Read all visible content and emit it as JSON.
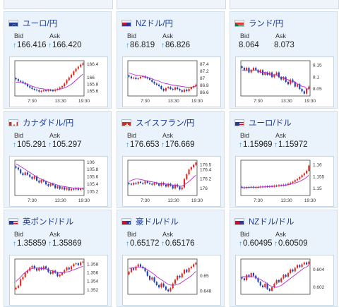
{
  "tiles": [
    {
      "pair": "ユーロ/円",
      "flag": "eu",
      "bid_label": "Bid",
      "ask_label": "Ask",
      "bid": "166.416",
      "ask": "166.420",
      "arrows": true,
      "y_ticks": [
        "166.4",
        "166",
        "165.8",
        "165.6"
      ],
      "x_ticks": [
        "7:30",
        "13:30",
        "19:30"
      ],
      "chart_data": {
        "type": "line",
        "ylim": [
          165.45,
          166.5
        ],
        "close": [
          165.95,
          165.9,
          165.88,
          165.84,
          165.8,
          165.74,
          165.7,
          165.66,
          165.64,
          165.62,
          165.58,
          165.6,
          165.62,
          165.6,
          165.63,
          165.62,
          165.6,
          165.64,
          165.66,
          165.7,
          165.74,
          165.82,
          165.92,
          166.0,
          166.08,
          166.18,
          166.26,
          166.32,
          166.38,
          166.42
        ],
        "ma": [
          165.86,
          165.86,
          165.85,
          165.84,
          165.82,
          165.8,
          165.77,
          165.74,
          165.72,
          165.7,
          165.68,
          165.67,
          165.66,
          165.64,
          165.64,
          165.63,
          165.63,
          165.63,
          165.64,
          165.65,
          165.67,
          165.69,
          165.72,
          165.76,
          165.8,
          165.86,
          165.92,
          165.98,
          166.04,
          166.1
        ]
      }
    },
    {
      "pair": "NZドル/円",
      "flag": "nz",
      "bid_label": "Bid",
      "ask_label": "Ask",
      "bid": "86.819",
      "ask": "86.826",
      "arrows": true,
      "y_ticks": [
        "87.4",
        "87.2",
        "87",
        "86.8",
        "86.6"
      ],
      "x_ticks": [
        "7:30",
        "13:30",
        "19:30"
      ],
      "chart_data": {
        "type": "line",
        "ylim": [
          86.5,
          87.5
        ],
        "close": [
          87.05,
          87.0,
          87.02,
          86.98,
          87.0,
          87.04,
          87.06,
          87.02,
          87.0,
          86.96,
          86.9,
          86.85,
          86.82,
          86.78,
          86.7,
          86.65,
          86.72,
          86.75,
          86.7,
          86.68,
          86.74,
          86.7,
          86.66,
          86.62,
          86.68,
          86.64,
          86.7,
          86.74,
          86.78,
          86.82
        ],
        "ma": [
          87.15,
          87.13,
          87.11,
          87.09,
          87.08,
          87.07,
          87.06,
          87.05,
          87.03,
          87.01,
          86.99,
          86.96,
          86.94,
          86.92,
          86.89,
          86.87,
          86.85,
          86.84,
          86.82,
          86.81,
          86.8,
          86.79,
          86.78,
          86.77,
          86.76,
          86.75,
          86.75,
          86.75,
          86.76,
          86.77
        ]
      }
    },
    {
      "pair": "ランド/円",
      "flag": "za",
      "bid_label": "Bid",
      "ask_label": "Ask",
      "bid": "8.064",
      "ask": "8.073",
      "arrows": false,
      "y_ticks": [
        "8.15",
        "8.1",
        "8.05"
      ],
      "x_ticks": [
        "7:30",
        "13:30",
        "19:30"
      ],
      "chart_data": {
        "type": "line",
        "ylim": [
          8.02,
          8.17
        ],
        "close": [
          8.14,
          8.13,
          8.14,
          8.12,
          8.13,
          8.14,
          8.13,
          8.12,
          8.13,
          8.11,
          8.12,
          8.11,
          8.12,
          8.1,
          8.11,
          8.12,
          8.1,
          8.09,
          8.1,
          8.08,
          8.07,
          8.09,
          8.08,
          8.06,
          8.07,
          8.05,
          8.04,
          8.03,
          8.05,
          8.06
        ],
        "ma": [
          8.13,
          8.13,
          8.13,
          8.13,
          8.13,
          8.13,
          8.13,
          8.13,
          8.12,
          8.12,
          8.12,
          8.12,
          8.11,
          8.11,
          8.11,
          8.11,
          8.1,
          8.1,
          8.1,
          8.09,
          8.09,
          8.08,
          8.08,
          8.08,
          8.07,
          8.07,
          8.06,
          8.06,
          8.05,
          8.05
        ]
      }
    },
    {
      "pair": "カナダドル/円",
      "flag": "ca",
      "bid_label": "Bid",
      "ask_label": "Ask",
      "bid": "105.291",
      "ask": "105.297",
      "arrows": true,
      "y_ticks": [
        "106",
        "105.8",
        "105.6",
        "105.4",
        "105.2"
      ],
      "x_ticks": [
        "7:30",
        "13:30",
        "19:30"
      ],
      "chart_data": {
        "type": "line",
        "ylim": [
          105.1,
          106.05
        ],
        "close": [
          105.85,
          105.8,
          105.7,
          105.65,
          105.72,
          105.66,
          105.6,
          105.55,
          105.62,
          105.5,
          105.45,
          105.52,
          105.48,
          105.4,
          105.36,
          105.42,
          105.38,
          105.3,
          105.35,
          105.28,
          105.32,
          105.26,
          105.3,
          105.24,
          105.28,
          105.26,
          105.3,
          105.25,
          105.28,
          105.29
        ],
        "ma": [
          105.95,
          105.92,
          105.88,
          105.84,
          105.8,
          105.76,
          105.72,
          105.68,
          105.64,
          105.6,
          105.57,
          105.54,
          105.51,
          105.48,
          105.46,
          105.44,
          105.42,
          105.4,
          105.38,
          105.36,
          105.35,
          105.34,
          105.33,
          105.32,
          105.31,
          105.3,
          105.3,
          105.29,
          105.29,
          105.29
        ]
      }
    },
    {
      "pair": "スイスフラン/円",
      "flag": "ch",
      "bid_label": "Bid",
      "ask_label": "Ask",
      "bid": "176.653",
      "ask": "176.669",
      "arrows": true,
      "y_ticks": [
        "176.5",
        "176.4",
        "176.2",
        "176"
      ],
      "x_ticks": [
        "7:30",
        "13:30",
        "19:30"
      ],
      "chart_data": {
        "type": "line",
        "ylim": [
          175.85,
          176.6
        ],
        "close": [
          176.1,
          176.08,
          176.12,
          176.1,
          176.14,
          176.12,
          176.1,
          176.15,
          176.12,
          176.1,
          176.08,
          176.12,
          176.1,
          176.06,
          176.12,
          176.08,
          176.04,
          176.1,
          176.06,
          176.0,
          176.08,
          176.04,
          175.98,
          176.02,
          176.2,
          176.3,
          176.4,
          176.45,
          176.5,
          176.55
        ],
        "ma": [
          176.15,
          176.17,
          176.19,
          176.2,
          176.2,
          176.19,
          176.18,
          176.17,
          176.16,
          176.15,
          176.14,
          176.13,
          176.12,
          176.11,
          176.1,
          176.1,
          176.09,
          176.09,
          176.08,
          176.07,
          176.07,
          176.06,
          176.05,
          176.05,
          176.08,
          176.11,
          176.15,
          176.19,
          176.24,
          176.28
        ]
      }
    },
    {
      "pair": "ユーロ/ドル",
      "flag": "us",
      "bid_label": "Bid",
      "ask_label": "Ask",
      "bid": "1.15969",
      "ask": "1.15972",
      "arrows": true,
      "y_ticks": [
        "1.16",
        "1.155",
        "1.15"
      ],
      "x_ticks": [
        "7:30",
        "13:30",
        "19:30"
      ],
      "chart_data": {
        "type": "line",
        "ylim": [
          1.147,
          1.162
        ],
        "close": [
          1.1505,
          1.1502,
          1.1506,
          1.1504,
          1.1507,
          1.1503,
          1.1506,
          1.1505,
          1.1508,
          1.1506,
          1.1509,
          1.1507,
          1.151,
          1.1508,
          1.1512,
          1.151,
          1.1514,
          1.1512,
          1.1516,
          1.1515,
          1.152,
          1.1524,
          1.1528,
          1.1535,
          1.154,
          1.1548,
          1.1556,
          1.1564,
          1.1575,
          1.1597
        ],
        "ma": [
          1.1503,
          1.1503,
          1.1504,
          1.1504,
          1.1505,
          1.1505,
          1.1505,
          1.1505,
          1.1506,
          1.1506,
          1.1507,
          1.1507,
          1.1508,
          1.1508,
          1.1509,
          1.151,
          1.1511,
          1.1512,
          1.1513,
          1.1514,
          1.1516,
          1.1518,
          1.152,
          1.1523,
          1.1526,
          1.153,
          1.1535,
          1.154,
          1.1547,
          1.1556
        ]
      }
    },
    {
      "pair": "英ポンド/ドル",
      "flag": "us",
      "bid_label": "Bid",
      "ask_label": "Ask",
      "bid": "1.35859",
      "ask": "1.35869",
      "arrows": true,
      "y_ticks": [
        "1.358",
        "1.356",
        "1.354",
        "1.352"
      ],
      "x_ticks": [],
      "chart_data": {
        "type": "line",
        "ylim": [
          1.351,
          1.3592
        ],
        "close": [
          1.3525,
          1.353,
          1.3545,
          1.355,
          1.356,
          1.3565,
          1.3572,
          1.3576,
          1.357,
          1.3565,
          1.3572,
          1.3568,
          1.3575,
          1.357,
          1.3562,
          1.3558,
          1.3565,
          1.356,
          1.3552,
          1.3555,
          1.356,
          1.3566,
          1.3572,
          1.3568,
          1.3575,
          1.358,
          1.3582,
          1.3578,
          1.3584,
          1.3586
        ],
        "ma": [
          1.354,
          1.3545,
          1.355,
          1.3556,
          1.3561,
          1.3565,
          1.3568,
          1.357,
          1.3571,
          1.3571,
          1.3571,
          1.357,
          1.357,
          1.3569,
          1.3567,
          1.3565,
          1.3564,
          1.3563,
          1.3561,
          1.356,
          1.356,
          1.3561,
          1.3562,
          1.3563,
          1.3565,
          1.3567,
          1.3569,
          1.3571,
          1.3573,
          1.3575
        ]
      }
    },
    {
      "pair": "豪ドル/ドル",
      "flag": "au",
      "bid_label": "Bid",
      "ask_label": "Ask",
      "bid": "0.65172",
      "ask": "0.65176",
      "arrows": true,
      "y_ticks": [
        "0.65",
        "0.648"
      ],
      "x_ticks": [],
      "chart_data": {
        "type": "line",
        "ylim": [
          0.6476,
          0.6522
        ],
        "close": [
          0.6505,
          0.651,
          0.6508,
          0.6512,
          0.6515,
          0.6512,
          0.651,
          0.6506,
          0.65,
          0.6495,
          0.6498,
          0.6492,
          0.6488,
          0.6485,
          0.649,
          0.6486,
          0.6482,
          0.648,
          0.6484,
          0.649,
          0.6495,
          0.65,
          0.6498,
          0.6503,
          0.6508,
          0.6505,
          0.651,
          0.6512,
          0.6515,
          0.6517
        ],
        "ma": [
          0.651,
          0.651,
          0.6511,
          0.6511,
          0.6511,
          0.6511,
          0.6511,
          0.651,
          0.6508,
          0.6506,
          0.6504,
          0.6502,
          0.6499,
          0.6497,
          0.6495,
          0.6493,
          0.6491,
          0.6489,
          0.6488,
          0.6488,
          0.6488,
          0.6489,
          0.649,
          0.6492,
          0.6494,
          0.6496,
          0.6498,
          0.65,
          0.6503,
          0.6506
        ]
      }
    },
    {
      "pair": "NZドル/ドル",
      "flag": "nz",
      "bid_label": "Bid",
      "ask_label": "Ask",
      "bid": "0.60495",
      "ask": "0.60509",
      "arrows": true,
      "y_ticks": [
        "0.604",
        "0.602"
      ],
      "x_ticks": [],
      "chart_data": {
        "type": "line",
        "ylim": [
          0.6012,
          0.6052
        ],
        "close": [
          0.603,
          0.6028,
          0.6034,
          0.6032,
          0.6036,
          0.6033,
          0.603,
          0.6026,
          0.6022,
          0.602,
          0.6024,
          0.6018,
          0.6016,
          0.602,
          0.6024,
          0.6028,
          0.6026,
          0.603,
          0.6034,
          0.6032,
          0.6036,
          0.604,
          0.6038,
          0.6042,
          0.6045,
          0.6043,
          0.6046,
          0.6048,
          0.6046,
          0.6049
        ],
        "ma": [
          0.6032,
          0.6032,
          0.6032,
          0.6032,
          0.6032,
          0.6032,
          0.6031,
          0.603,
          0.6029,
          0.6027,
          0.6026,
          0.6024,
          0.6022,
          0.6021,
          0.602,
          0.602,
          0.6021,
          0.6022,
          0.6024,
          0.6026,
          0.6028,
          0.603,
          0.6032,
          0.6034,
          0.6036,
          0.6038,
          0.604,
          0.6042,
          0.6043,
          0.6045
        ]
      }
    }
  ],
  "colors": {
    "up": "#e0281e",
    "down": "#1d3fae",
    "ma": "#b52cc8",
    "title": "#1a3b9c",
    "arrow": "#2a88d8"
  }
}
